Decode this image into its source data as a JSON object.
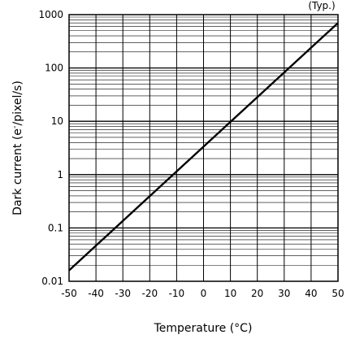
{
  "chart_data": {
    "type": "line",
    "note": "(Typ.)",
    "xlabel": "Temperature (°C)",
    "ylabel_main": "Dark current (e",
    "ylabel_sup": "-",
    "ylabel_rest": "/pixel/s)",
    "xlim": [
      -50,
      50
    ],
    "ylim": [
      0.01,
      1000
    ],
    "y_scale": "log",
    "grid": true,
    "x_ticks": [
      "-50",
      "-40",
      "-30",
      "-20",
      "-10",
      "0",
      "10",
      "20",
      "30",
      "40",
      "50"
    ],
    "y_ticks": [
      "1000",
      "100",
      "10",
      "1",
      "0.1",
      "0.01"
    ],
    "series": [
      {
        "x": [
          -50,
          50
        ],
        "y": [
          0.016,
          700
        ]
      }
    ]
  }
}
